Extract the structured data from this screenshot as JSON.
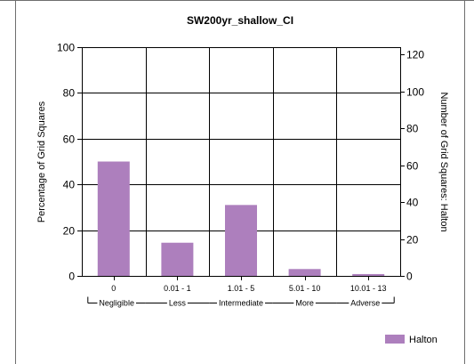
{
  "chart_data": {
    "type": "bar",
    "title": "SW200yr_shallow_CI",
    "categories": [
      "0",
      "0.01 - 1",
      "1.01 - 5",
      "5.01 - 10",
      "10.01 - 13"
    ],
    "category_groups": [
      "Negligible",
      "Less",
      "Intermediate",
      "More",
      "Adverse"
    ],
    "series": [
      {
        "name": "Halton",
        "values": [
          50,
          14.5,
          31,
          3,
          0.8
        ],
        "color": "#ad7fbd"
      }
    ],
    "ylabel": "Percentage of Grid Squares",
    "ylim": [
      0,
      100
    ],
    "yticks": [
      0,
      20,
      40,
      60,
      80,
      100
    ],
    "y2label": "Number of Grid Squares: Halton",
    "y2lim": [
      0,
      124
    ],
    "y2ticks": [
      0,
      20,
      40,
      60,
      80,
      100,
      120
    ],
    "grid": true,
    "legend_position": "bottom-right"
  }
}
